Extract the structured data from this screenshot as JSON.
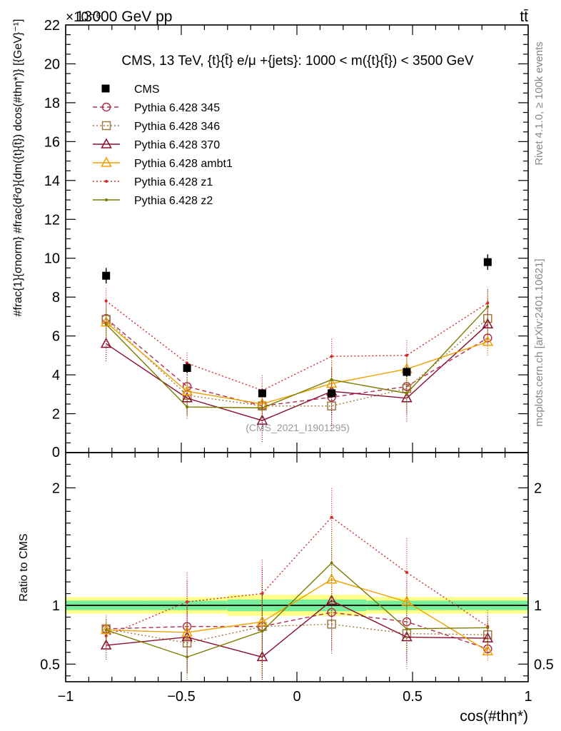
{
  "header": {
    "energy_label": "13000 GeV pp",
    "process_label": "tt̄",
    "exponent_label": "×10⁻⁶",
    "rivet_label": "Rivet 4.1.0, ≥ 100k events",
    "mcplots_label": "mcplots.cern.ch [arXiv:2401.10621]",
    "analysis_id": "(CMS_2021_I1901295)"
  },
  "chart_data": {
    "type": "line",
    "title": "CMS, 13 TeV, {t}{t̄} e/μ +{jets}: 1000 < m({t}{t̄}) < 3500 GeV",
    "xlabel": "cos(#thη*)",
    "ylabel": "#frac{1}{σnorm} #frac{d²σ}{dm({t}{t̄}) dcos(#thη*)} [{GeV}⁻¹]",
    "ratio_ylabel": "Ratio to CMS",
    "xlim": [
      -1,
      1
    ],
    "ylim": [
      0,
      22
    ],
    "ratio_ylim": [
      0.35,
      2.3
    ],
    "x_ticks": [
      -1,
      -0.5,
      0,
      0.5,
      1
    ],
    "x_tick_labels": [
      "−1",
      "−0.5",
      "0",
      "0.5",
      "1"
    ],
    "y_ticks": [
      2,
      4,
      6,
      8,
      10,
      12,
      14,
      16,
      18,
      20,
      22
    ],
    "y_tick_labels": [
      "2",
      "4",
      "6",
      "8",
      "10",
      "12",
      "14",
      "16",
      "18",
      "20",
      "22"
    ],
    "y_zero_label": "0",
    "ratio_ticks": [
      0.5,
      1,
      2
    ],
    "ratio_tick_labels": [
      "0.5",
      "1",
      "2"
    ],
    "x": [
      -0.825,
      -0.475,
      -0.15,
      0.15,
      0.475,
      0.825
    ],
    "bin_edges": [
      -1,
      -0.65,
      -0.3,
      0,
      0.3,
      0.65,
      1
    ],
    "cms": {
      "name": "CMS",
      "values": [
        9.1,
        4.35,
        3.05,
        3.05,
        4.15,
        9.8
      ],
      "errors": [
        0.4,
        0.25,
        0.2,
        0.2,
        0.25,
        0.4
      ]
    },
    "ratio_band_inner": [
      0.04,
      0.04,
      0.05,
      0.05,
      0.04,
      0.04
    ],
    "ratio_band_outer": [
      0.07,
      0.07,
      0.09,
      0.09,
      0.07,
      0.07
    ],
    "series": [
      {
        "name": "Pythia 6.428 345",
        "color": "#b0304e",
        "dash": "6,4",
        "marker": "circle",
        "values": [
          6.9,
          3.4,
          2.4,
          2.85,
          3.4,
          5.9
        ],
        "errors": [
          1.0,
          1.3,
          1.1,
          1.6,
          1.4,
          0.9
        ],
        "ratio": [
          0.8,
          0.82,
          0.82,
          0.94,
          0.86,
          0.63
        ],
        "ratio_errors": [
          0.12,
          0.4,
          0.5,
          0.3,
          0.35,
          0.1
        ]
      },
      {
        "name": "Pythia 6.428 346",
        "color": "#9d7a3f",
        "dash": "2,3",
        "marker": "square",
        "values": [
          6.85,
          2.95,
          2.4,
          2.4,
          3.3,
          6.9
        ],
        "errors": [
          0.9,
          1.0,
          1.2,
          1.0,
          1.3,
          1.1
        ],
        "ratio": [
          0.8,
          0.68,
          0.82,
          0.84,
          0.76,
          0.75
        ],
        "ratio_errors": [
          0.12,
          0.25,
          0.3,
          0.22,
          0.3,
          0.12
        ]
      },
      {
        "name": "Pythia 6.428 370",
        "color": "#8b0e2e",
        "dash": "",
        "marker": "triangle",
        "values": [
          5.6,
          2.8,
          1.65,
          3.15,
          2.8,
          6.6
        ],
        "errors": [
          0.9,
          0.9,
          1.1,
          1.2,
          1.2,
          1.1
        ],
        "ratio": [
          0.66,
          0.73,
          0.56,
          1.04,
          0.73,
          0.72
        ],
        "ratio_errors": [
          0.12,
          0.3,
          0.6,
          0.45,
          0.2,
          0.12
        ]
      },
      {
        "name": "Pythia 6.428 ambt1",
        "color": "#f0a000",
        "dash": "",
        "marker": "triangle",
        "values": [
          6.7,
          3.15,
          2.5,
          3.55,
          4.3,
          5.7
        ],
        "errors": [
          0.8,
          0.6,
          0.5,
          0.6,
          0.7,
          0.7
        ],
        "ratio": [
          0.79,
          0.77,
          0.86,
          1.22,
          1.03,
          0.61
        ],
        "ratio_errors": [
          0.08,
          0.08,
          0.1,
          0.12,
          0.12,
          0.08
        ]
      },
      {
        "name": "Pythia 6.428 z1",
        "color": "#d62728",
        "dash": "2,3",
        "marker": "dot",
        "values": [
          7.8,
          4.6,
          3.2,
          4.95,
          5.0,
          7.7
        ],
        "errors": [
          0.7,
          0.6,
          0.8,
          0.9,
          0.8,
          0.7
        ],
        "ratio": [
          0.74,
          1.03,
          1.1,
          1.75,
          1.28,
          0.82
        ],
        "ratio_errors": [
          0.1,
          0.25,
          0.3,
          0.25,
          0.3,
          0.1
        ]
      },
      {
        "name": "Pythia 6.428 z2",
        "color": "#7b7b00",
        "dash": "",
        "marker": "dot",
        "values": [
          6.6,
          2.35,
          2.3,
          3.75,
          3.05,
          7.5
        ],
        "errors": [
          0.7,
          0.6,
          0.5,
          0.9,
          0.7,
          1.0
        ],
        "ratio": [
          0.79,
          0.56,
          0.78,
          1.36,
          0.8,
          0.81
        ],
        "ratio_errors": [
          0.1,
          0.3,
          0.4,
          0.3,
          0.2,
          0.15
        ]
      }
    ]
  }
}
